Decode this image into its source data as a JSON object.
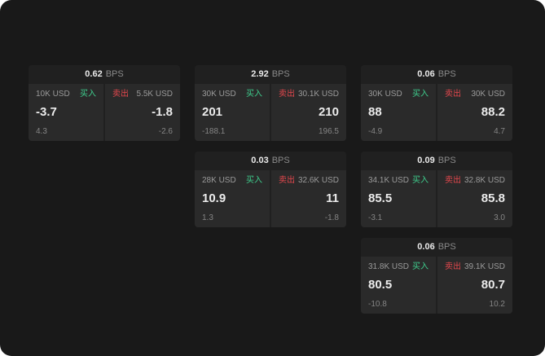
{
  "labels": {
    "buy": "买入",
    "sell": "卖出",
    "bps_suffix": "BPS"
  },
  "colors": {
    "page_bg": "#191919",
    "card_bg": "#202020",
    "panel_bg": "#2a2a2a",
    "buy_green": "#3fcf8e",
    "sell_red": "#e5484d"
  },
  "cards": [
    {
      "bps": "0.62",
      "bid": {
        "size": "10K USD",
        "price": "-3.7",
        "sub": "4.3"
      },
      "ask": {
        "size": "5.5K USD",
        "price": "-1.8",
        "sub": "-2.6"
      }
    },
    {
      "bps": "2.92",
      "bid": {
        "size": "30K USD",
        "price": "201",
        "sub": "-188.1"
      },
      "ask": {
        "size": "30.1K USD",
        "price": "210",
        "sub": "196.5"
      }
    },
    {
      "bps": "0.06",
      "bid": {
        "size": "30K USD",
        "price": "88",
        "sub": "-4.9"
      },
      "ask": {
        "size": "30K USD",
        "price": "88.2",
        "sub": "4.7"
      }
    },
    {
      "bps": "0.03",
      "bid": {
        "size": "28K USD",
        "price": "10.9",
        "sub": "1.3"
      },
      "ask": {
        "size": "32.6K USD",
        "price": "11",
        "sub": "-1.8"
      }
    },
    {
      "bps": "0.09",
      "bid": {
        "size": "34.1K USD",
        "price": "85.5",
        "sub": "-3.1"
      },
      "ask": {
        "size": "32.8K USD",
        "price": "85.8",
        "sub": "3.0"
      }
    },
    {
      "bps": "0.06",
      "bid": {
        "size": "31.8K USD",
        "price": "80.5",
        "sub": "-10.8"
      },
      "ask": {
        "size": "39.1K USD",
        "price": "80.7",
        "sub": "10.2"
      }
    }
  ]
}
